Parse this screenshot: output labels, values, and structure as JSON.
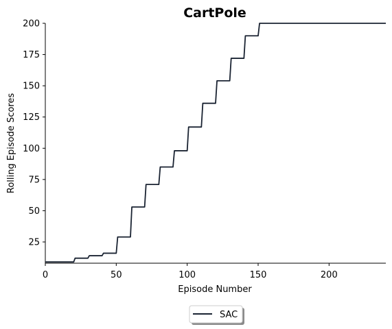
{
  "chart_data": {
    "type": "line",
    "title": "CartPole",
    "xlabel": "Episode Number",
    "ylabel": "Rolling Episode Scores",
    "xlim": [
      0,
      240
    ],
    "ylim": [
      8,
      200
    ],
    "xticks": [
      0,
      50,
      100,
      150,
      200
    ],
    "yticks": [
      25,
      50,
      75,
      100,
      125,
      150,
      175,
      200
    ],
    "grid": false,
    "legend_placement": "bottom-center, below axes",
    "series": [
      {
        "name": "SAC",
        "color": "#1a2332",
        "x": [
          0,
          20,
          21,
          30,
          31,
          40,
          41,
          50,
          51,
          60,
          61,
          70,
          71,
          80,
          81,
          90,
          91,
          100,
          101,
          110,
          111,
          120,
          121,
          130,
          131,
          140,
          141,
          150,
          151,
          240
        ],
        "y": [
          9,
          9,
          12,
          12,
          14,
          14,
          16,
          16,
          29,
          29,
          53,
          53,
          71,
          71,
          85,
          85,
          98,
          98,
          117,
          117,
          136,
          136,
          154,
          154,
          172,
          172,
          190,
          190,
          200,
          200
        ]
      }
    ]
  }
}
